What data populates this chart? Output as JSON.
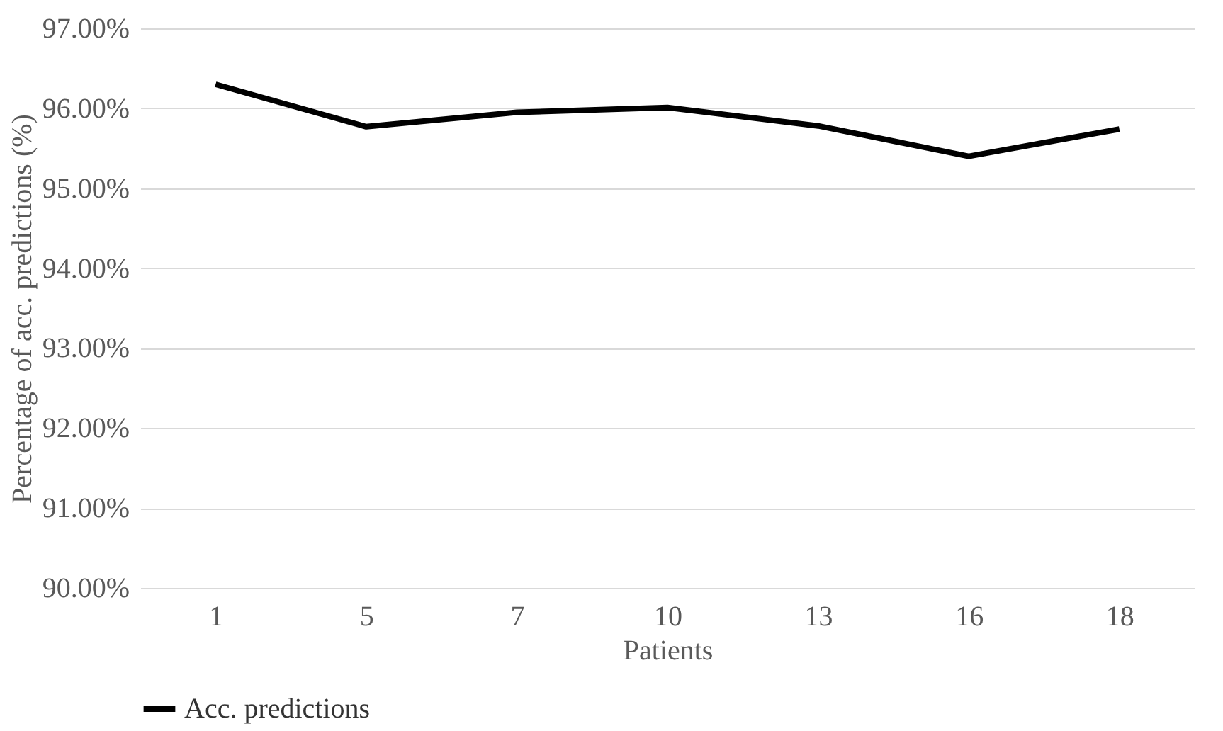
{
  "chart_data": {
    "type": "line",
    "xlabel": "Patients",
    "ylabel": "Percentage of acc. predictions (%)",
    "categories": [
      "1",
      "5",
      "7",
      "10",
      "13",
      "16",
      "18"
    ],
    "series": [
      {
        "name": "Acc. predictions",
        "color": "#000000",
        "values": [
          96.3,
          95.77,
          95.95,
          96.01,
          95.78,
          95.4,
          95.74
        ]
      }
    ],
    "ylim": [
      90,
      97
    ],
    "yticks": [
      {
        "value": 90,
        "label": "90.00%"
      },
      {
        "value": 91,
        "label": "91.00%"
      },
      {
        "value": 92,
        "label": "92.00%"
      },
      {
        "value": 93,
        "label": "93.00%"
      },
      {
        "value": 94,
        "label": "94.00%"
      },
      {
        "value": 95,
        "label": "95.00%"
      },
      {
        "value": 96,
        "label": "96.00%"
      },
      {
        "value": 97,
        "label": "97.00%"
      }
    ],
    "grid": "y",
    "legend": "bottom",
    "marker": "none",
    "line_style": "solid"
  }
}
